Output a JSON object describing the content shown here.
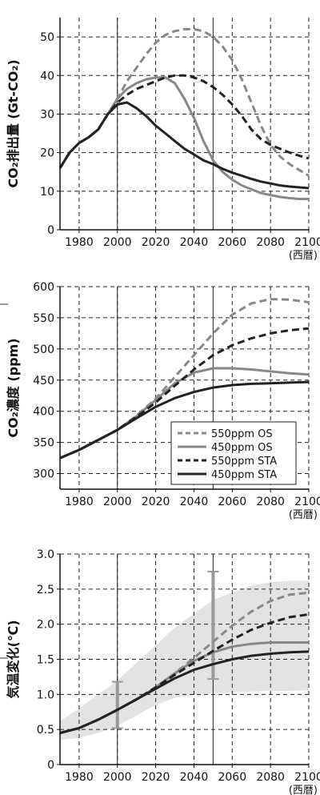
{
  "chart_data": [
    {
      "type": "line",
      "ylabel": "CO₂排出量 (Gt-CO₂)",
      "x_unit": "(西暦)",
      "xlim": [
        1970,
        2100
      ],
      "ylim": [
        0,
        55
      ],
      "x_ticks": [
        "1980",
        "2000",
        "2020",
        "2040",
        "2060",
        "2080",
        "2100"
      ],
      "y_ticks": [
        "0",
        "10",
        "20",
        "30",
        "40",
        "50"
      ],
      "grid": true,
      "series": [
        {
          "id": "550os",
          "color": "#888888",
          "dash": "dashed",
          "x": [
            1970,
            1975,
            1980,
            1985,
            1990,
            1995,
            2000,
            2005,
            2010,
            2015,
            2020,
            2025,
            2030,
            2035,
            2040,
            2045,
            2050,
            2055,
            2060,
            2065,
            2070,
            2075,
            2080,
            2085,
            2090,
            2095,
            2100
          ],
          "y": [
            16,
            20,
            22.5,
            24,
            26,
            30,
            34,
            38.5,
            42,
            45.5,
            48.5,
            50.5,
            51.5,
            52,
            52,
            51.5,
            50,
            47.5,
            44,
            39,
            33,
            27,
            22,
            19,
            17,
            15.5,
            14
          ]
        },
        {
          "id": "450os",
          "color": "#888888",
          "dash": "solid",
          "x": [
            1970,
            1975,
            1980,
            1985,
            1990,
            1995,
            2000,
            2005,
            2010,
            2015,
            2020,
            2025,
            2030,
            2035,
            2040,
            2045,
            2050,
            2055,
            2060,
            2065,
            2070,
            2075,
            2080,
            2085,
            2090,
            2095,
            2100
          ],
          "y": [
            16,
            20,
            22.5,
            24,
            26,
            30,
            34,
            36.5,
            38,
            39,
            39.5,
            39.5,
            38,
            34,
            29,
            23,
            18,
            15,
            13,
            11.5,
            10.5,
            9.5,
            9,
            8.5,
            8.2,
            8,
            8
          ]
        },
        {
          "id": "550sta",
          "color": "#222222",
          "dash": "dashed",
          "x": [
            1970,
            1975,
            1980,
            1985,
            1990,
            1995,
            2000,
            2005,
            2010,
            2015,
            2020,
            2025,
            2030,
            2035,
            2040,
            2045,
            2050,
            2055,
            2060,
            2065,
            2070,
            2075,
            2080,
            2085,
            2090,
            2095,
            2100
          ],
          "y": [
            16,
            20,
            22.5,
            24,
            26,
            30,
            33,
            35,
            36.5,
            37.5,
            38.5,
            39.5,
            40,
            40,
            39.5,
            38.5,
            37,
            35,
            32.5,
            29.5,
            26,
            23.5,
            22,
            21,
            20,
            19.2,
            18.5
          ]
        },
        {
          "id": "450sta",
          "color": "#222222",
          "dash": "solid",
          "x": [
            1970,
            1975,
            1980,
            1985,
            1990,
            1995,
            2000,
            2005,
            2010,
            2015,
            2020,
            2025,
            2030,
            2035,
            2040,
            2045,
            2050,
            2055,
            2060,
            2065,
            2070,
            2075,
            2080,
            2085,
            2090,
            2095,
            2100
          ],
          "y": [
            16,
            20,
            22.5,
            24,
            26,
            30,
            32.5,
            33,
            31.5,
            29.5,
            27,
            25,
            23,
            21,
            19.5,
            18,
            17,
            15.8,
            14.8,
            14,
            13.2,
            12.5,
            12,
            11.5,
            11.2,
            11,
            10.8
          ]
        }
      ]
    },
    {
      "type": "line",
      "ylabel": "CO₂濃度 (ppm)",
      "x_unit": "(西暦)",
      "xlim": [
        1970,
        2100
      ],
      "ylim": [
        275,
        600
      ],
      "x_ticks": [
        "1980",
        "2000",
        "2020",
        "2040",
        "2060",
        "2080",
        "2100"
      ],
      "y_ticks": [
        "300",
        "350",
        "400",
        "450",
        "500",
        "550",
        "600"
      ],
      "grid": true,
      "legend": {
        "position": "bottom-right",
        "entries": [
          {
            "label": "550ppm OS",
            "color": "#888888",
            "dash": "dashed"
          },
          {
            "label": "450ppm OS",
            "color": "#888888",
            "dash": "solid"
          },
          {
            "label": "550ppm STA",
            "color": "#222222",
            "dash": "dashed"
          },
          {
            "label": "450ppm STA",
            "color": "#222222",
            "dash": "solid"
          }
        ]
      },
      "series": [
        {
          "id": "550os",
          "color": "#888888",
          "dash": "dashed",
          "x": [
            1970,
            1980,
            1990,
            2000,
            2010,
            2020,
            2030,
            2040,
            2050,
            2060,
            2070,
            2080,
            2090,
            2100
          ],
          "y": [
            325,
            338,
            354,
            370,
            393,
            420,
            455,
            490,
            525,
            555,
            573,
            580,
            579,
            575
          ]
        },
        {
          "id": "450os",
          "color": "#888888",
          "dash": "solid",
          "x": [
            1970,
            1980,
            1990,
            2000,
            2010,
            2020,
            2030,
            2040,
            2050,
            2060,
            2070,
            2080,
            2090,
            2100
          ],
          "y": [
            325,
            338,
            354,
            370,
            392,
            418,
            445,
            462,
            469,
            469,
            467,
            464,
            461,
            459
          ]
        },
        {
          "id": "550sta",
          "color": "#222222",
          "dash": "dashed",
          "x": [
            1970,
            1980,
            1990,
            2000,
            2010,
            2020,
            2030,
            2040,
            2050,
            2060,
            2070,
            2080,
            2090,
            2100
          ],
          "y": [
            325,
            338,
            354,
            370,
            391,
            414,
            441,
            467,
            490,
            506,
            517,
            525,
            530,
            533
          ]
        },
        {
          "id": "450sta",
          "color": "#222222",
          "dash": "solid",
          "x": [
            1970,
            1980,
            1990,
            2000,
            2010,
            2020,
            2030,
            2040,
            2050,
            2060,
            2070,
            2080,
            2090,
            2100
          ],
          "y": [
            325,
            338,
            354,
            370,
            389,
            407,
            421,
            431,
            438,
            442,
            444,
            445,
            446,
            447
          ]
        }
      ]
    },
    {
      "type": "line",
      "ylabel": "気温変化(℃)",
      "x_unit": "(西暦)",
      "xlim": [
        1970,
        2100
      ],
      "ylim": [
        0,
        3.0
      ],
      "x_ticks": [
        "1980",
        "2000",
        "2020",
        "2040",
        "2060",
        "2080",
        "2100"
      ],
      "y_ticks": [
        "0",
        "0.5",
        "1.0",
        "1.5",
        "2.0",
        "2.5",
        "3.0"
      ],
      "grid": true,
      "uncertainty_band": {
        "color": "#e3e3e3",
        "x": [
          1970,
          1980,
          1990,
          2000,
          2010,
          2020,
          2030,
          2040,
          2050,
          2060,
          2070,
          2080,
          2090,
          2100
        ],
        "upper": [
          0.62,
          0.8,
          1.0,
          1.2,
          1.45,
          1.7,
          1.95,
          2.15,
          2.35,
          2.45,
          2.55,
          2.6,
          2.62,
          2.62
        ],
        "lower": [
          0.35,
          0.38,
          0.45,
          0.55,
          0.7,
          0.85,
          0.95,
          1.0,
          1.02,
          1.03,
          1.04,
          1.05,
          1.05,
          1.06
        ]
      },
      "error_bars": [
        {
          "x": 2000,
          "low": 0.52,
          "high": 1.18,
          "color": "#9a9a9a"
        },
        {
          "x": 2050,
          "low": 1.22,
          "high": 2.75,
          "color": "#9a9a9a"
        }
      ],
      "series": [
        {
          "id": "550os",
          "color": "#888888",
          "dash": "dashed",
          "x": [
            1970,
            1980,
            1990,
            2000,
            2010,
            2020,
            2030,
            2040,
            2050,
            2060,
            2070,
            2080,
            2090,
            2100
          ],
          "y": [
            0.45,
            0.52,
            0.64,
            0.78,
            0.93,
            1.1,
            1.3,
            1.52,
            1.75,
            1.98,
            2.18,
            2.33,
            2.42,
            2.45
          ]
        },
        {
          "id": "450os",
          "color": "#888888",
          "dash": "solid",
          "x": [
            1970,
            1980,
            1990,
            2000,
            2010,
            2020,
            2030,
            2040,
            2050,
            2060,
            2070,
            2080,
            2090,
            2100
          ],
          "y": [
            0.45,
            0.52,
            0.64,
            0.78,
            0.93,
            1.1,
            1.3,
            1.48,
            1.6,
            1.68,
            1.72,
            1.74,
            1.74,
            1.74
          ]
        },
        {
          "id": "550sta",
          "color": "#222222",
          "dash": "dashed",
          "x": [
            1970,
            1980,
            1990,
            2000,
            2010,
            2020,
            2030,
            2040,
            2050,
            2060,
            2070,
            2080,
            2090,
            2100
          ],
          "y": [
            0.45,
            0.52,
            0.64,
            0.78,
            0.93,
            1.1,
            1.28,
            1.45,
            1.62,
            1.78,
            1.92,
            2.02,
            2.1,
            2.14
          ]
        },
        {
          "id": "450sta",
          "color": "#222222",
          "dash": "solid",
          "x": [
            1970,
            1980,
            1990,
            2000,
            2010,
            2020,
            2030,
            2040,
            2050,
            2060,
            2070,
            2080,
            2090,
            2100
          ],
          "y": [
            0.45,
            0.52,
            0.64,
            0.78,
            0.93,
            1.08,
            1.23,
            1.35,
            1.43,
            1.5,
            1.55,
            1.58,
            1.6,
            1.61
          ]
        }
      ]
    }
  ]
}
